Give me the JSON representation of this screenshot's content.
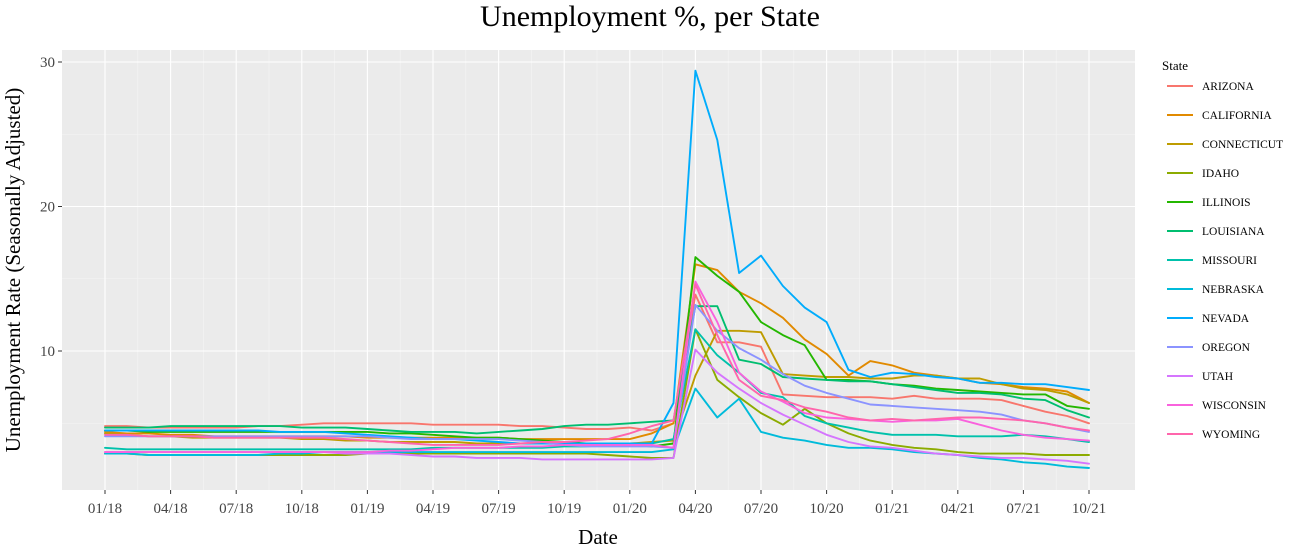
{
  "chart_data": {
    "type": "line",
    "title": "Unemployment %, per State",
    "xlabel": "Date",
    "ylabel": "Unemployment Rate (Seasonally Adjusted)",
    "legend_title": "State",
    "legend_position": "right",
    "grid": true,
    "ylim": [
      0,
      30
    ],
    "yticks": [
      10,
      20,
      30
    ],
    "x_months": [
      "01/18",
      "02/18",
      "03/18",
      "04/18",
      "05/18",
      "06/18",
      "07/18",
      "08/18",
      "09/18",
      "10/18",
      "11/18",
      "12/18",
      "01/19",
      "02/19",
      "03/19",
      "04/19",
      "05/19",
      "06/19",
      "07/19",
      "08/19",
      "09/19",
      "10/19",
      "11/19",
      "12/19",
      "01/20",
      "02/20",
      "03/20",
      "04/20",
      "05/20",
      "06/20",
      "07/20",
      "08/20",
      "09/20",
      "10/20",
      "11/20",
      "12/20",
      "01/21",
      "02/21",
      "03/21",
      "04/21",
      "05/21",
      "06/21",
      "07/21",
      "08/21",
      "09/21",
      "10/21"
    ],
    "xticks": [
      "01/18",
      "04/18",
      "07/18",
      "10/18",
      "01/19",
      "04/19",
      "07/19",
      "10/19",
      "01/20",
      "04/20",
      "07/20",
      "10/20",
      "01/21",
      "04/21",
      "07/21",
      "10/21"
    ],
    "series": [
      {
        "name": "ARIZONA",
        "color": "#F8766D",
        "values": [
          4.8,
          4.8,
          4.7,
          4.7,
          4.7,
          4.7,
          4.7,
          4.8,
          4.8,
          4.9,
          5.0,
          5.0,
          5.0,
          5.0,
          5.0,
          4.9,
          4.9,
          4.9,
          4.9,
          4.8,
          4.8,
          4.7,
          4.6,
          4.6,
          4.7,
          4.5,
          5.0,
          13.9,
          10.6,
          10.6,
          10.3,
          7.0,
          6.9,
          6.8,
          6.8,
          6.8,
          6.7,
          6.9,
          6.7,
          6.7,
          6.7,
          6.6,
          6.2,
          5.8,
          5.5,
          5.0
        ]
      },
      {
        "name": "CALIFORNIA",
        "color": "#E18A00",
        "values": [
          4.4,
          4.3,
          4.3,
          4.2,
          4.2,
          4.1,
          4.1,
          4.1,
          4.1,
          4.1,
          4.1,
          4.1,
          4.0,
          4.0,
          4.0,
          4.0,
          4.0,
          4.0,
          4.0,
          3.9,
          3.9,
          3.9,
          3.9,
          3.9,
          3.9,
          4.3,
          5.0,
          16.0,
          15.6,
          14.1,
          13.3,
          12.3,
          10.8,
          9.8,
          8.3,
          9.3,
          9.0,
          8.5,
          8.3,
          8.1,
          7.8,
          7.7,
          7.5,
          7.4,
          7.2,
          6.4
        ]
      },
      {
        "name": "CONNECTICUT",
        "color": "#BE9C00",
        "values": [
          4.3,
          4.2,
          4.1,
          4.1,
          4.0,
          4.0,
          4.0,
          4.0,
          4.0,
          3.9,
          3.9,
          3.8,
          3.8,
          3.7,
          3.7,
          3.7,
          3.7,
          3.6,
          3.6,
          3.6,
          3.6,
          3.6,
          3.6,
          3.6,
          3.6,
          3.7,
          3.8,
          8.3,
          11.4,
          11.4,
          11.3,
          8.4,
          8.3,
          8.2,
          8.2,
          8.1,
          8.1,
          8.3,
          8.3,
          8.1,
          8.1,
          7.7,
          7.4,
          7.3,
          7.0,
          6.4
        ]
      },
      {
        "name": "IDAHO",
        "color": "#8CAB00",
        "values": [
          2.9,
          2.9,
          2.8,
          2.8,
          2.8,
          2.8,
          2.8,
          2.8,
          2.8,
          2.8,
          2.8,
          2.8,
          2.9,
          2.9,
          2.9,
          2.9,
          2.9,
          2.9,
          2.9,
          2.9,
          2.9,
          2.9,
          2.9,
          2.8,
          2.7,
          2.6,
          2.6,
          11.5,
          8.0,
          6.8,
          5.7,
          4.9,
          6.0,
          5.0,
          4.3,
          3.8,
          3.5,
          3.3,
          3.2,
          3.0,
          2.9,
          2.9,
          2.9,
          2.8,
          2.8,
          2.8
        ]
      },
      {
        "name": "ILLINOIS",
        "color": "#24B700",
        "values": [
          4.5,
          4.5,
          4.4,
          4.4,
          4.4,
          4.4,
          4.4,
          4.4,
          4.4,
          4.4,
          4.4,
          4.4,
          4.4,
          4.3,
          4.3,
          4.2,
          4.1,
          4.0,
          4.0,
          3.9,
          3.8,
          3.7,
          3.6,
          3.6,
          3.5,
          3.4,
          3.6,
          16.5,
          15.2,
          14.1,
          12.0,
          11.1,
          10.4,
          8.0,
          8.0,
          7.9,
          7.7,
          7.6,
          7.4,
          7.3,
          7.2,
          7.1,
          7.0,
          7.0,
          6.2,
          6.0
        ]
      },
      {
        "name": "LOUISIANA",
        "color": "#00BE70",
        "values": [
          4.7,
          4.7,
          4.7,
          4.8,
          4.8,
          4.8,
          4.8,
          4.8,
          4.8,
          4.7,
          4.7,
          4.7,
          4.6,
          4.5,
          4.4,
          4.4,
          4.4,
          4.3,
          4.4,
          4.5,
          4.6,
          4.8,
          4.9,
          4.9,
          5.0,
          5.1,
          5.2,
          13.1,
          13.1,
          9.4,
          9.1,
          8.2,
          8.1,
          8.0,
          7.9,
          7.9,
          7.7,
          7.5,
          7.3,
          7.1,
          7.1,
          7.0,
          6.7,
          6.6,
          5.9,
          5.4
        ]
      },
      {
        "name": "MISSOURI",
        "color": "#00C1AB",
        "values": [
          3.3,
          3.2,
          3.2,
          3.2,
          3.2,
          3.2,
          3.2,
          3.2,
          3.2,
          3.2,
          3.2,
          3.2,
          3.2,
          3.2,
          3.2,
          3.3,
          3.3,
          3.3,
          3.3,
          3.3,
          3.3,
          3.4,
          3.4,
          3.5,
          3.6,
          3.6,
          3.9,
          11.5,
          9.7,
          8.5,
          7.1,
          6.8,
          5.5,
          5.0,
          4.7,
          4.4,
          4.2,
          4.2,
          4.2,
          4.1,
          4.1,
          4.1,
          4.2,
          4.1,
          3.9,
          3.7
        ]
      },
      {
        "name": "NEBRASKA",
        "color": "#00BBDA",
        "values": [
          2.9,
          2.9,
          2.8,
          2.8,
          2.8,
          2.8,
          2.8,
          2.8,
          2.9,
          2.9,
          3.0,
          3.0,
          3.0,
          3.0,
          3.0,
          3.0,
          3.0,
          3.0,
          3.0,
          3.0,
          3.0,
          3.0,
          3.0,
          3.0,
          3.0,
          3.0,
          3.2,
          7.4,
          5.4,
          6.7,
          4.4,
          4.0,
          3.8,
          3.5,
          3.3,
          3.3,
          3.2,
          3.0,
          2.9,
          2.8,
          2.6,
          2.5,
          2.3,
          2.2,
          2.0,
          1.9
        ]
      },
      {
        "name": "NEVADA",
        "color": "#00ACFC",
        "values": [
          4.5,
          4.5,
          4.5,
          4.5,
          4.5,
          4.5,
          4.5,
          4.5,
          4.4,
          4.4,
          4.4,
          4.3,
          4.2,
          4.1,
          4.0,
          3.9,
          3.9,
          3.8,
          3.7,
          3.6,
          3.6,
          3.6,
          3.6,
          3.6,
          3.6,
          3.6,
          6.4,
          29.4,
          24.6,
          15.4,
          16.6,
          14.5,
          13.0,
          12.0,
          8.7,
          8.2,
          8.5,
          8.4,
          8.2,
          8.1,
          7.8,
          7.8,
          7.7,
          7.7,
          7.5,
          7.3
        ]
      },
      {
        "name": "OREGON",
        "color": "#8B93FF",
        "values": [
          4.1,
          4.1,
          4.1,
          4.1,
          4.1,
          4.1,
          4.1,
          4.1,
          4.1,
          4.1,
          4.1,
          4.1,
          4.1,
          4.0,
          3.9,
          3.9,
          3.9,
          3.9,
          3.9,
          3.8,
          3.7,
          3.5,
          3.4,
          3.4,
          3.4,
          3.4,
          3.3,
          13.2,
          11.4,
          10.2,
          9.4,
          8.4,
          7.6,
          7.1,
          6.7,
          6.3,
          6.2,
          6.1,
          6.0,
          5.9,
          5.8,
          5.6,
          5.2,
          5.0,
          4.7,
          4.4
        ]
      },
      {
        "name": "UTAH",
        "color": "#D575FE",
        "values": [
          3.0,
          3.0,
          3.0,
          3.0,
          3.0,
          3.0,
          3.0,
          3.0,
          3.0,
          3.0,
          3.0,
          2.9,
          2.9,
          2.9,
          2.8,
          2.7,
          2.7,
          2.6,
          2.6,
          2.6,
          2.5,
          2.5,
          2.5,
          2.5,
          2.5,
          2.5,
          2.6,
          10.1,
          8.5,
          7.4,
          6.4,
          5.6,
          4.9,
          4.2,
          3.7,
          3.4,
          3.3,
          3.1,
          2.9,
          2.8,
          2.7,
          2.6,
          2.6,
          2.5,
          2.4,
          2.2
        ]
      },
      {
        "name": "WISCONSIN",
        "color": "#F962DD",
        "values": [
          3.0,
          3.0,
          3.0,
          3.0,
          3.0,
          3.0,
          3.0,
          3.0,
          3.0,
          3.0,
          3.0,
          3.0,
          3.0,
          3.1,
          3.1,
          3.2,
          3.3,
          3.3,
          3.3,
          3.4,
          3.4,
          3.5,
          3.5,
          3.5,
          3.5,
          3.5,
          3.3,
          14.8,
          12.0,
          8.5,
          7.2,
          6.5,
          5.7,
          5.4,
          5.3,
          5.2,
          5.1,
          5.2,
          5.2,
          5.3,
          4.9,
          4.5,
          4.2,
          4.0,
          3.9,
          3.8
        ]
      },
      {
        "name": "WYOMING",
        "color": "#FF65AC",
        "values": [
          4.2,
          4.2,
          4.1,
          4.1,
          4.1,
          4.0,
          4.0,
          4.0,
          4.0,
          4.0,
          4.0,
          3.9,
          3.8,
          3.7,
          3.6,
          3.5,
          3.5,
          3.5,
          3.5,
          3.6,
          3.7,
          3.7,
          3.8,
          3.9,
          4.3,
          4.8,
          5.2,
          14.6,
          11.1,
          8.0,
          6.9,
          6.6,
          6.1,
          5.8,
          5.4,
          5.2,
          5.3,
          5.2,
          5.3,
          5.4,
          5.4,
          5.3,
          5.2,
          5.0,
          4.7,
          4.5
        ]
      }
    ]
  }
}
